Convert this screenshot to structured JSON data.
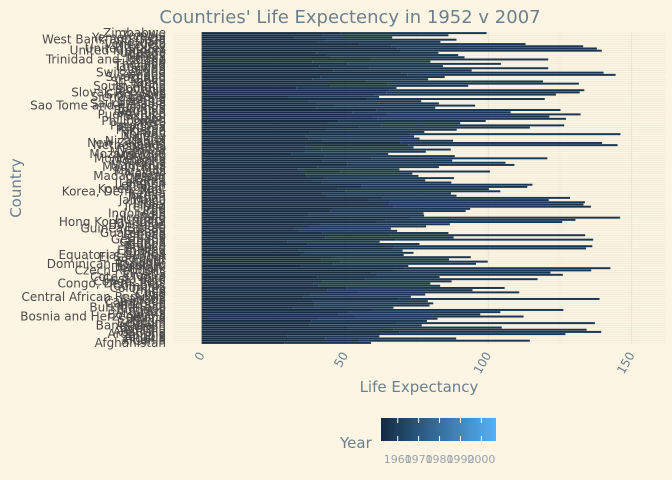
{
  "chart_data": {
    "type": "bar",
    "orientation": "horizontal",
    "stacked": true,
    "title": "Countries' Life Expectency in 1952 v 2007",
    "xlabel": "Life Expectancy",
    "ylabel": "Country",
    "xlim": [
      -10,
      162
    ],
    "xticks": [
      0,
      50,
      100,
      150
    ],
    "grid": true,
    "legend": {
      "title": "Year",
      "position": "bottom",
      "type": "colorbar",
      "range": [
        1952,
        2007
      ],
      "ticks": [
        1960,
        1970,
        1980,
        1990,
        2000
      ],
      "color_low": "#132b43",
      "color_high": "#56b1f7"
    },
    "categories": [
      "Afghanistan",
      "Albania",
      "Algeria",
      "Angola",
      "Argentina",
      "Australia",
      "Austria",
      "Bahrain",
      "Bangladesh",
      "Belgium",
      "Benin",
      "Bolivia",
      "Bosnia and Herzegovina",
      "Botswana",
      "Brazil",
      "Bulgaria",
      "Burkina Faso",
      "Burundi",
      "Cambodia",
      "Cameroon",
      "Canada",
      "Central African Republic",
      "Chad",
      "Chile",
      "China",
      "Colombia",
      "Comoros",
      "Congo, Dem. Rep.",
      "Congo, Rep.",
      "Costa Rica",
      "Cote d'Ivoire",
      "Croatia",
      "Cuba",
      "Czech Republic",
      "Denmark",
      "Djibouti",
      "Dominican Republic",
      "Ecuador",
      "Egypt",
      "El Salvador",
      "Equatorial Guinea",
      "Eritrea",
      "Ethiopia",
      "Finland",
      "France",
      "Gabon",
      "Gambia",
      "Germany",
      "Ghana",
      "Greece",
      "Guatemala",
      "Guinea",
      "Guinea-Bissau",
      "Haiti",
      "Honduras",
      "Hong Kong, China",
      "Hungary",
      "Iceland",
      "India",
      "Indonesia",
      "Iran",
      "Iraq",
      "Ireland",
      "Israel",
      "Italy",
      "Jamaica",
      "Japan",
      "Jordan",
      "Kenya",
      "Korea, Dem. Rep.",
      "Korea, Rep.",
      "Kuwait",
      "Lebanon",
      "Lesotho",
      "Liberia",
      "Libya",
      "Madagascar",
      "Malawi",
      "Malaysia",
      "Mali",
      "Mauritania",
      "Mauritius",
      "Mexico",
      "Mongolia",
      "Montenegro",
      "Morocco",
      "Mozambique",
      "Myanmar",
      "Namibia",
      "Nepal",
      "Netherlands",
      "New Zealand",
      "Nicaragua",
      "Niger",
      "Nigeria",
      "Norway",
      "Oman",
      "Pakistan",
      "Panama",
      "Paraguay",
      "Peru",
      "Philippines",
      "Poland",
      "Portugal",
      "Puerto Rico",
      "Reunion",
      "Romania",
      "Rwanda",
      "Sao Tome and Principe",
      "Saudi Arabia",
      "Senegal",
      "Serbia",
      "Sierra Leone",
      "Singapore",
      "Slovak Republic",
      "Slovenia",
      "Somalia",
      "South Africa",
      "Spain",
      "Sri Lanka",
      "Sudan",
      "Swaziland",
      "Sweden",
      "Switzerland",
      "Syria",
      "Taiwan",
      "Tanzania",
      "Thailand",
      "Togo",
      "Trinidad and Tobago",
      "Tunisia",
      "Turkey",
      "Uganda",
      "United Kingdom",
      "United States",
      "Uruguay",
      "Venezuela",
      "Vietnam",
      "West Bank and Gaza",
      "Yemen, Rep.",
      "Zambia",
      "Zimbabwe"
    ],
    "series": [
      {
        "year": 1952,
        "values": [
          28.8,
          55.2,
          43.1,
          30.0,
          62.5,
          69.1,
          66.8,
          50.9,
          37.5,
          68.0,
          38.2,
          40.4,
          53.8,
          47.6,
          50.9,
          59.6,
          32.0,
          39.0,
          39.4,
          38.5,
          68.8,
          35.5,
          38.1,
          54.7,
          44.0,
          50.6,
          40.7,
          39.1,
          42.1,
          57.2,
          40.5,
          61.2,
          59.4,
          66.9,
          70.8,
          34.8,
          45.9,
          48.4,
          41.9,
          45.3,
          34.5,
          35.9,
          34.1,
          66.6,
          67.4,
          37.0,
          30.0,
          67.5,
          43.1,
          65.9,
          42.0,
          33.6,
          32.5,
          37.6,
          41.9,
          61.0,
          64.0,
          72.5,
          37.4,
          37.5,
          44.9,
          45.3,
          66.9,
          65.4,
          65.9,
          58.5,
          63.0,
          43.2,
          42.3,
          50.1,
          47.5,
          55.6,
          55.9,
          42.1,
          38.5,
          42.7,
          36.7,
          36.3,
          48.5,
          33.7,
          40.5,
          51.0,
          50.8,
          42.2,
          59.2,
          42.9,
          31.3,
          36.3,
          41.7,
          36.2,
          72.1,
          69.4,
          42.3,
          37.4,
          36.3,
          72.7,
          37.6,
          43.4,
          55.2,
          62.6,
          43.9,
          47.8,
          61.3,
          59.8,
          64.3,
          52.7,
          61.1,
          40.0,
          46.5,
          39.9,
          37.3,
          58.0,
          30.3,
          60.4,
          64.4,
          65.6,
          32.98,
          45.0,
          64.9,
          57.6,
          38.6,
          41.4,
          71.9,
          69.6,
          45.9,
          58.5,
          41.2,
          50.8,
          38.6,
          59.1,
          44.6,
          43.6,
          39.98,
          69.2,
          68.4,
          66.1,
          55.1,
          40.4,
          43.2,
          32.5,
          42.0,
          48.5
        ]
      },
      {
        "year": 1957,
        "values": [
          30.3,
          59.3,
          45.7,
          31.99,
          64.4,
          70.3,
          67.5,
          53.8,
          39.3,
          69.2,
          40.4,
          41.9,
          58.5,
          49.6,
          53.3,
          66.6,
          34.9,
          40.5,
          41.4,
          40.4,
          70.0,
          37.5,
          39.9,
          56.1,
          50.5,
          55.1,
          42.5,
          40.7,
          45.1,
          60.0,
          42.5,
          64.8,
          62.3,
          69.0,
          71.8,
          37.3,
          49.8,
          51.4,
          44.4,
          48.6,
          35.98,
          38.0,
          36.0,
          67.5,
          68.9,
          38.99,
          32.1,
          69.1,
          44.8,
          67.9,
          44.1,
          34.6,
          33.5,
          40.7,
          44.7,
          64.8,
          66.4,
          73.5,
          40.2,
          39.9,
          47.2,
          48.4,
          68.9,
          67.8,
          67.8,
          62.6,
          65.5,
          45.7,
          44.7,
          54.1,
          52.7,
          58.0,
          59.5,
          45.0,
          39.5,
          45.3,
          38.9,
          37.2,
          52.1,
          35.3,
          42.3,
          58.1,
          55.2,
          45.2,
          61.4,
          45.4,
          33.8,
          41.9,
          45.2,
          37.7,
          72.99,
          70.3,
          45.4,
          38.6,
          37.8,
          73.4,
          40.1,
          45.6,
          59.3,
          63.9,
          46.3,
          51.3,
          65.8,
          61.5,
          67.9,
          55.1,
          64.1,
          41.5,
          48.9,
          42.9,
          39.3,
          61.7,
          31.6,
          63.2,
          67.5,
          67.9,
          34.98,
          48.0,
          66.7,
          61.5,
          40.4,
          43.4,
          72.5,
          70.6,
          48.3,
          62.4,
          42.97,
          53.6,
          41.2,
          61.8,
          47.1,
          45.9,
          42.6,
          70.4,
          69.5,
          67.0,
          57.9,
          42.9,
          45.7,
          33.97,
          44.1,
          50.9
        ]
      }
    ]
  }
}
